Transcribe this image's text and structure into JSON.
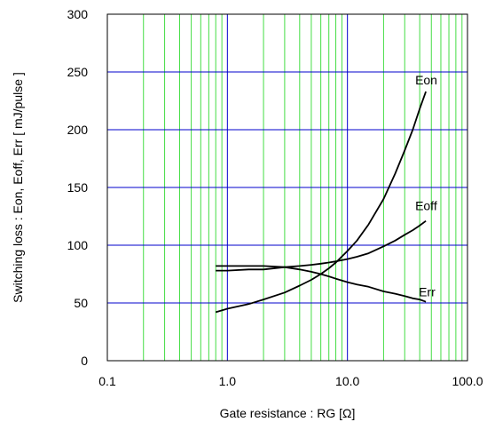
{
  "chart_data": {
    "type": "line",
    "xlabel": "Gate resistance : RG [Ω]",
    "ylabel": "Switching loss  :  Eon, Eoff, Err  [ mJ/pulse ]",
    "xscale": "log",
    "xlim": [
      0.1,
      100
    ],
    "ylim": [
      0,
      300
    ],
    "x_ticks": [
      0.1,
      1.0,
      10.0,
      100.0
    ],
    "x_tick_labels": [
      "0.1",
      "1.0",
      "10.0",
      "100.0"
    ],
    "y_ticks": [
      0,
      50,
      100,
      150,
      200,
      250,
      300
    ],
    "y_tick_labels": [
      "0",
      "50",
      "100",
      "150",
      "200",
      "250",
      "300"
    ],
    "grid": {
      "major_color": "#0000cc",
      "minor_color": "#44dd44",
      "horizontal_color": "#0000cc"
    },
    "legend": "inline labels at line ends",
    "series": [
      {
        "name": "Eon",
        "color": "#000000",
        "x": [
          0.8,
          1.0,
          1.5,
          2.0,
          3.0,
          4.0,
          5.0,
          6.0,
          7.0,
          8.0,
          10.0,
          12.0,
          15.0,
          20.0,
          25.0,
          30.0,
          35.0,
          40.0,
          45.0
        ],
        "y": [
          42,
          45,
          49,
          53,
          59,
          65,
          70,
          75,
          80,
          85,
          95,
          104,
          118,
          140,
          162,
          182,
          200,
          218,
          233
        ]
      },
      {
        "name": "Eoff",
        "color": "#000000",
        "x": [
          0.8,
          1.0,
          1.5,
          2.0,
          3.0,
          4.0,
          5.0,
          6.0,
          7.0,
          8.0,
          10.0,
          12.0,
          15.0,
          20.0,
          25.0,
          30.0,
          35.0,
          40.0,
          45.0
        ],
        "y": [
          78,
          78,
          79,
          79,
          81,
          82,
          83,
          84,
          85,
          86,
          88,
          90,
          93,
          99,
          104,
          109,
          113,
          117,
          121
        ]
      },
      {
        "name": "Err",
        "color": "#000000",
        "x": [
          0.8,
          1.0,
          1.5,
          2.0,
          3.0,
          4.0,
          5.0,
          6.0,
          7.0,
          8.0,
          10.0,
          12.0,
          15.0,
          20.0,
          25.0,
          30.0,
          35.0,
          40.0,
          45.0
        ],
        "y": [
          82,
          82,
          82,
          82,
          81,
          79,
          77,
          75,
          73,
          71,
          68,
          66,
          64,
          60,
          58,
          56,
          54,
          53,
          51
        ]
      }
    ]
  }
}
